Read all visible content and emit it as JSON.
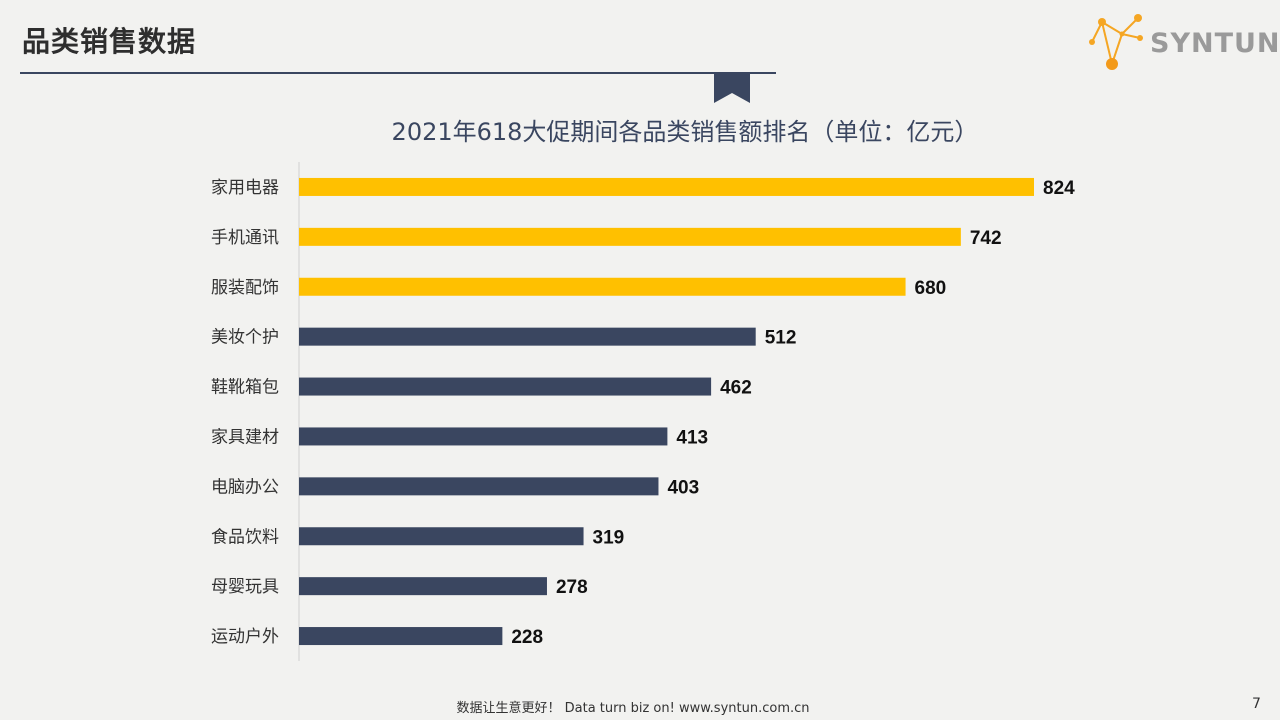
{
  "header": {
    "title": "品类销售数据"
  },
  "logo": {
    "text": "SYNTUN",
    "icon": "syntun-molecule-icon",
    "accent": "#f5a623"
  },
  "colors": {
    "highlight": "#ffc000",
    "normal": "#3a4660"
  },
  "chart_data": {
    "type": "bar",
    "orientation": "horizontal",
    "title": "2021年618大促期间各品类销售额排名（单位：亿元）",
    "categories": [
      "家用电器",
      "手机通讯",
      "服装配饰",
      "美妆个护",
      "鞋靴箱包",
      "家具建材",
      "电脑办公",
      "食品饮料",
      "母婴玩具",
      "运动户外"
    ],
    "values": [
      824,
      742,
      680,
      512,
      462,
      413,
      403,
      319,
      278,
      228
    ],
    "highlighted_count": 3,
    "xlabel": "",
    "ylabel": "",
    "grid": false,
    "data_labels": true
  },
  "footer": {
    "slogan": "数据让生意更好！ Data turn biz on!  www.syntun.com.cn",
    "page_number": "7"
  }
}
